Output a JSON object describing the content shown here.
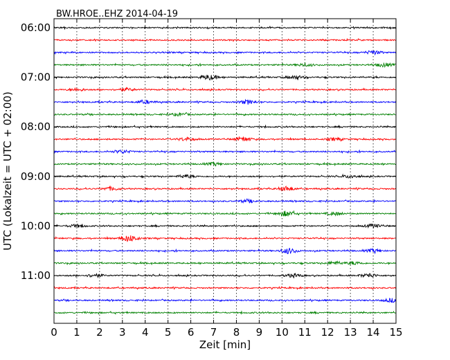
{
  "chart_data": {
    "type": "line",
    "title": "BW.HROE..EHZ 2014-04-19",
    "xlabel": "Zeit  [min]",
    "ylabel": "UTC (Lokalzeit = UTC + 02:00)",
    "xlim": [
      0,
      15
    ],
    "x_ticks": [
      "0",
      "1",
      "2",
      "3",
      "4",
      "5",
      "6",
      "7",
      "8",
      "9",
      "10",
      "11",
      "12",
      "13",
      "14",
      "15"
    ],
    "y_ticks": [
      "06:00",
      "07:00",
      "08:00",
      "09:00",
      "10:00",
      "11:00"
    ],
    "grid": {
      "x": "dotted",
      "y": "off"
    },
    "trace_colors": [
      "#000000",
      "#ff0000",
      "#0000ff",
      "#008000"
    ],
    "traces": [
      {
        "start": "06:00",
        "color": "#000000",
        "bursts": []
      },
      {
        "start": "06:15",
        "color": "#ff0000",
        "bursts": []
      },
      {
        "start": "06:30",
        "color": "#0000ff",
        "bursts": [
          [
            14.0,
            1.6
          ]
        ]
      },
      {
        "start": "06:45",
        "color": "#008000",
        "bursts": [
          [
            11.0,
            1.2
          ],
          [
            14.5,
            1.6
          ]
        ]
      },
      {
        "start": "07:00",
        "color": "#000000",
        "bursts": [
          [
            6.8,
            2.4
          ],
          [
            10.6,
            1.6
          ]
        ]
      },
      {
        "start": "07:15",
        "color": "#ff0000",
        "bursts": [
          [
            1.0,
            1.2
          ],
          [
            3.2,
            1.2
          ]
        ]
      },
      {
        "start": "07:30",
        "color": "#0000ff",
        "bursts": [
          [
            4.0,
            1.4
          ],
          [
            8.5,
            1.8
          ]
        ]
      },
      {
        "start": "07:45",
        "color": "#008000",
        "bursts": [
          [
            5.5,
            1.3
          ]
        ]
      },
      {
        "start": "08:00",
        "color": "#000000",
        "bursts": []
      },
      {
        "start": "08:15",
        "color": "#ff0000",
        "bursts": [
          [
            5.8,
            1.5
          ],
          [
            8.3,
            1.8
          ],
          [
            12.3,
            1.2
          ]
        ]
      },
      {
        "start": "08:30",
        "color": "#0000ff",
        "bursts": [
          [
            3.0,
            1.3
          ]
        ]
      },
      {
        "start": "08:45",
        "color": "#008000",
        "bursts": [
          [
            7.0,
            1.2
          ]
        ]
      },
      {
        "start": "09:00",
        "color": "#000000",
        "bursts": [
          [
            5.8,
            1.3
          ],
          [
            13.0,
            1.3
          ]
        ]
      },
      {
        "start": "09:15",
        "color": "#ff0000",
        "bursts": [
          [
            2.5,
            1.5
          ],
          [
            10.2,
            2.0
          ]
        ]
      },
      {
        "start": "09:30",
        "color": "#0000ff",
        "bursts": [
          [
            8.5,
            1.2
          ]
        ]
      },
      {
        "start": "09:45",
        "color": "#008000",
        "bursts": [
          [
            10.2,
            2.4
          ],
          [
            12.3,
            1.4
          ]
        ]
      },
      {
        "start": "10:00",
        "color": "#000000",
        "bursts": [
          [
            1.0,
            1.3
          ],
          [
            14.0,
            1.5
          ]
        ]
      },
      {
        "start": "10:15",
        "color": "#ff0000",
        "bursts": [
          [
            3.3,
            3.0
          ]
        ]
      },
      {
        "start": "10:30",
        "color": "#0000ff",
        "bursts": [
          [
            10.3,
            2.4
          ],
          [
            14.0,
            1.4
          ]
        ]
      },
      {
        "start": "10:45",
        "color": "#008000",
        "bursts": [
          [
            12.3,
            1.4
          ],
          [
            13.2,
            1.3
          ]
        ]
      },
      {
        "start": "11:00",
        "color": "#000000",
        "bursts": [
          [
            1.8,
            1.3
          ],
          [
            10.5,
            1.5
          ],
          [
            13.8,
            1.8
          ]
        ]
      },
      {
        "start": "11:15",
        "color": "#ff0000",
        "bursts": []
      },
      {
        "start": "11:30",
        "color": "#0000ff",
        "bursts": [
          [
            14.8,
            1.5
          ]
        ]
      },
      {
        "start": "11:45",
        "color": "#008000",
        "bursts": []
      }
    ]
  }
}
